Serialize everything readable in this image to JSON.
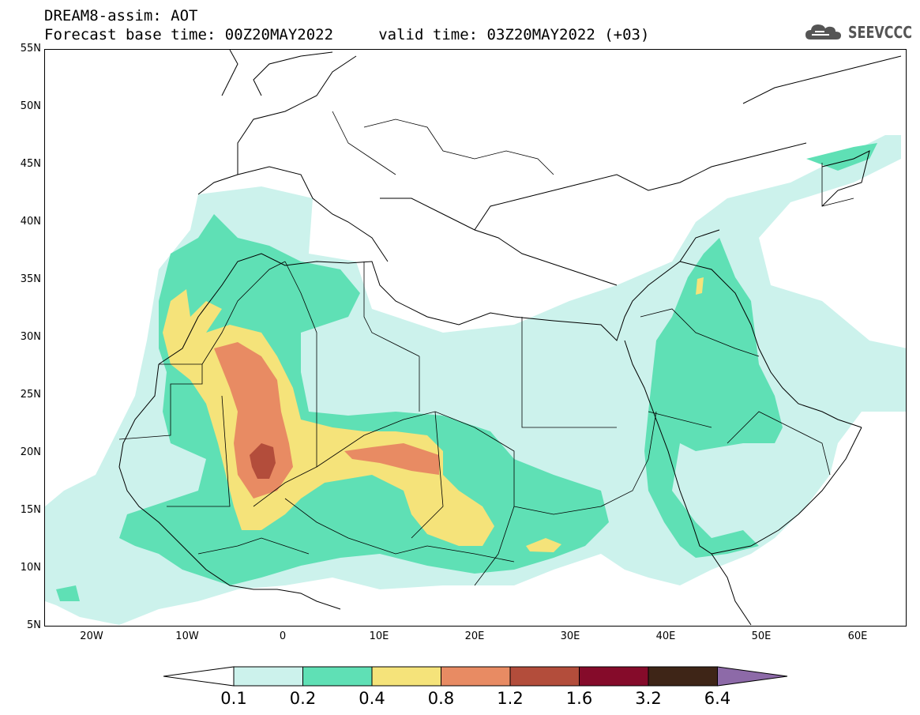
{
  "header": {
    "line1": "DREAM8-assim: AOT",
    "line2": "Forecast base time: 00Z20MAY2022     valid time: 03Z20MAY2022 (+03)"
  },
  "logo": {
    "text": "SEEVCCC",
    "icon": "cloud-icon"
  },
  "map": {
    "lat_labels": [
      "55N",
      "50N",
      "45N",
      "40N",
      "35N",
      "30N",
      "25N",
      "20N",
      "15N",
      "10N",
      "5N"
    ],
    "lon_labels": [
      "20W",
      "10W",
      "0",
      "10E",
      "20E",
      "30E",
      "40E",
      "50E",
      "60E"
    ],
    "lon_range": [
      -25,
      65
    ],
    "lat_range": [
      5,
      55
    ],
    "variable": "AOT"
  },
  "colorbar": {
    "labels": [
      "0.1",
      "0.2",
      "0.4",
      "0.8",
      "1.2",
      "1.6",
      "3.2",
      "6.4"
    ],
    "colors": [
      "#ccf2ec",
      "#5fe0b5",
      "#f5e37a",
      "#e88b63",
      "#b34d3b",
      "#850b2a",
      "#3e2517",
      "#8d6aa8"
    ],
    "under_color": "#ffffff"
  }
}
